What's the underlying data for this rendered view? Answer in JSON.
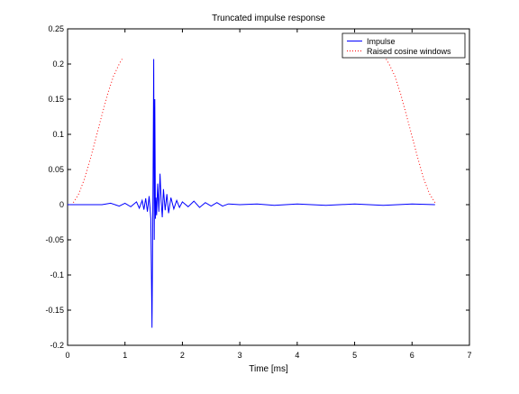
{
  "chart_data": {
    "type": "line",
    "title": "Truncated impulse response",
    "xlabel": "Time [ms]",
    "ylabel": "",
    "xlim": [
      0,
      7
    ],
    "ylim": [
      -0.2,
      0.25
    ],
    "grid": false,
    "legend_position": "top-right",
    "x_ticks": [
      0,
      1,
      2,
      3,
      4,
      5,
      6,
      7
    ],
    "x_tick_labels": [
      "0",
      "1",
      "2",
      "3",
      "4",
      "5",
      "6",
      "7"
    ],
    "y_ticks": [
      -0.2,
      -0.15,
      -0.1,
      -0.05,
      0,
      0.05,
      0.1,
      0.15,
      0.2,
      0.25
    ],
    "y_tick_labels": [
      "-0.2",
      "-0.15",
      "-0.1",
      "-0.05",
      "0",
      "0.05",
      "0.1",
      "0.15",
      "0.2",
      "0.25"
    ],
    "series": [
      {
        "name": "Impulse",
        "color": "#0000ff",
        "style": "solid",
        "x": [
          0,
          0.6,
          0.75,
          0.9,
          1.0,
          1.1,
          1.2,
          1.25,
          1.3,
          1.33,
          1.36,
          1.39,
          1.42,
          1.45,
          1.47,
          1.49,
          1.5,
          1.51,
          1.52,
          1.53,
          1.54,
          1.55,
          1.57,
          1.59,
          1.61,
          1.63,
          1.65,
          1.67,
          1.7,
          1.73,
          1.76,
          1.8,
          1.85,
          1.9,
          1.95,
          2.0,
          2.1,
          2.2,
          2.3,
          2.4,
          2.5,
          2.6,
          2.7,
          2.8,
          3.0,
          3.3,
          3.6,
          4.0,
          4.5,
          5.0,
          5.5,
          6.0,
          6.4
        ],
        "y": [
          0,
          0,
          0.002,
          -0.002,
          0.002,
          -0.003,
          0.004,
          -0.005,
          0.006,
          -0.007,
          0.009,
          -0.01,
          0.012,
          -0.02,
          -0.175,
          0.04,
          0.207,
          -0.05,
          0.15,
          -0.02,
          0.01,
          -0.015,
          0.03,
          -0.01,
          0.044,
          0.005,
          -0.018,
          0.022,
          -0.008,
          0.015,
          -0.012,
          0.01,
          -0.006,
          0.006,
          -0.004,
          0.004,
          -0.003,
          0.005,
          -0.004,
          0.003,
          -0.002,
          0.003,
          -0.002,
          0.001,
          0,
          0.001,
          -0.001,
          0.001,
          -0.001,
          0.001,
          -0.001,
          0.001,
          0
        ]
      },
      {
        "name": "Raised cosine windows",
        "color": "#ff0000",
        "style": "dotted",
        "x": [
          0.1,
          0.2,
          0.3,
          0.4,
          0.5,
          0.6,
          0.7,
          0.8,
          0.9,
          0.95,
          5.55,
          5.6,
          5.7,
          5.8,
          5.9,
          6.0,
          6.1,
          6.2,
          6.3,
          6.4
        ],
        "y": [
          0.003,
          0.016,
          0.038,
          0.066,
          0.097,
          0.128,
          0.158,
          0.183,
          0.2,
          0.207,
          0.207,
          0.2,
          0.183,
          0.158,
          0.128,
          0.097,
          0.066,
          0.038,
          0.016,
          0.003
        ]
      }
    ]
  }
}
